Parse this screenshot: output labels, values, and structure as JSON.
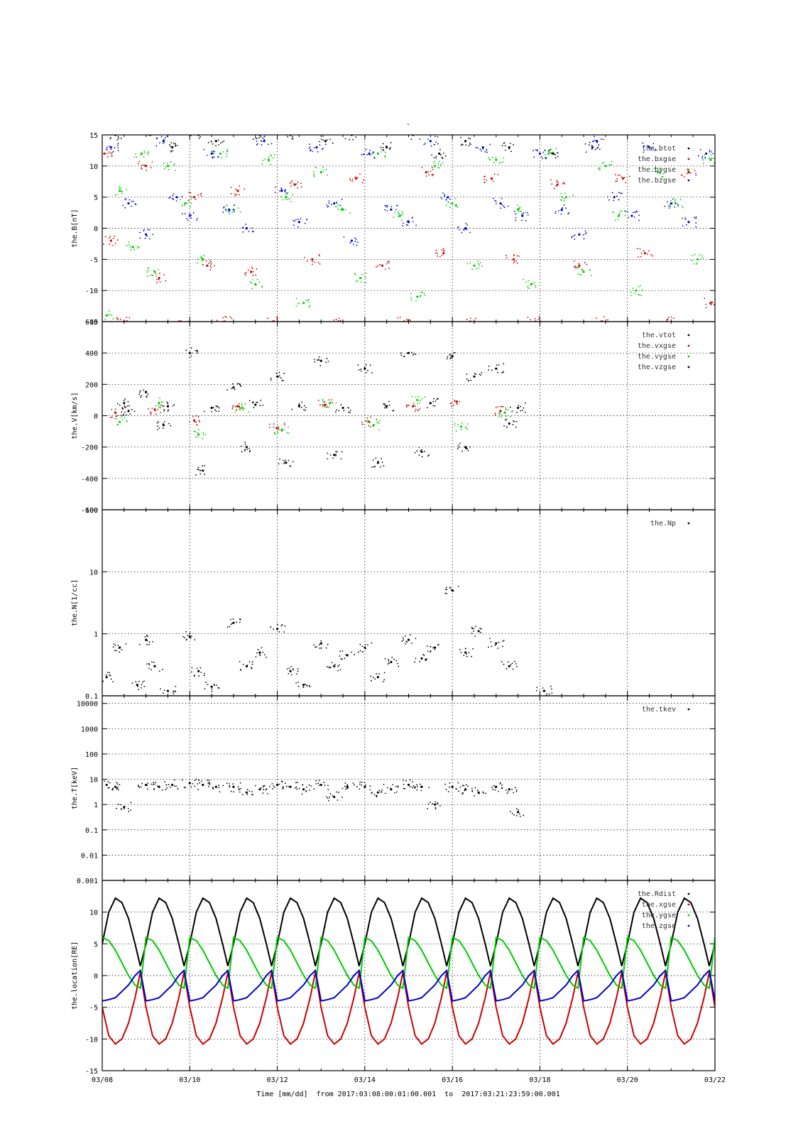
{
  "figure": {
    "top_mark": "-",
    "x_axis_label": "Time [mm/dd]  from 2017:03:08:00:01:00.001  to  2017:03:21:23:59:00.001",
    "x_ticks": [
      "03/08",
      "03/10",
      "03/12",
      "03/14",
      "03/16",
      "03/18",
      "03/20",
      "03/22"
    ]
  },
  "chart_data": [
    {
      "type": "scatter",
      "id": "B",
      "ylabel": "the.B[nT]",
      "ylim": [
        -15,
        15
      ],
      "yticks": [
        "15",
        "10",
        "5",
        "0",
        "-5",
        "-10",
        "-15"
      ],
      "ytick_values": [
        15,
        10,
        5,
        0,
        -5,
        -10,
        -15
      ],
      "grid": true,
      "legend_position": "top-right",
      "series": [
        {
          "name": "the.btot",
          "color": "#000000",
          "x_days": [
            0.3,
            1.1,
            1.6,
            2.2,
            2.6,
            3.6,
            4.3,
            5.1,
            5.7,
            6.5,
            7.1,
            7.7,
            8.3,
            9.3,
            10.3,
            11.2
          ],
          "y": [
            15,
            15,
            13,
            15,
            14,
            15,
            15,
            14,
            15,
            13,
            15,
            12,
            14,
            13,
            12,
            13
          ]
        },
        {
          "name": "the.bxgse",
          "color": "#cc0000",
          "x_days": [
            0.05,
            0.2,
            0.5,
            1.0,
            1.3,
            1.8,
            2.1,
            2.4,
            2.8,
            3.1,
            3.4,
            3.9,
            4.4,
            4.8,
            5.4,
            5.8,
            6.4,
            6.9,
            7.4,
            7.8,
            8.4,
            8.9,
            9.4,
            9.9,
            10.4,
            10.9,
            11.4,
            11.9,
            12.4,
            12.9,
            13.4,
            13.9
          ],
          "y": [
            12,
            -2,
            -15,
            10,
            -8,
            -15,
            5,
            -6,
            -15,
            6,
            -7,
            -15,
            7,
            -5,
            -15,
            8,
            -6,
            -15,
            9,
            -4,
            -15,
            8,
            -5,
            -15,
            7,
            -6,
            -15,
            8,
            -4,
            -15,
            9,
            -12
          ]
        },
        {
          "name": "the.bygse",
          "color": "#00cc00",
          "x_days": [
            0.1,
            0.4,
            0.7,
            0.9,
            1.2,
            1.5,
            1.9,
            2.3,
            2.7,
            3.0,
            3.5,
            3.8,
            4.2,
            4.6,
            5.0,
            5.5,
            5.9,
            6.3,
            6.8,
            7.2,
            7.6,
            8.0,
            8.5,
            9.0,
            9.5,
            9.8,
            10.2,
            10.6,
            11.0,
            11.5,
            11.8,
            12.2,
            12.7,
            13.1,
            13.6,
            13.9
          ],
          "y": [
            -14,
            6,
            -3,
            12,
            -7,
            10,
            4,
            -5,
            12,
            3,
            -9,
            11,
            5,
            -12,
            9,
            3,
            -8,
            12,
            2,
            -11,
            10,
            4,
            -6,
            11,
            3,
            -9,
            12,
            5,
            -7,
            10,
            2,
            -10,
            9,
            4,
            -5,
            11
          ]
        },
        {
          "name": "the.bzgse",
          "color": "#0000cc",
          "x_days": [
            0.2,
            0.6,
            1.0,
            1.4,
            1.7,
            2.0,
            2.5,
            2.9,
            3.3,
            3.7,
            4.1,
            4.5,
            4.9,
            5.3,
            5.7,
            6.1,
            6.6,
            7.0,
            7.5,
            7.9,
            8.3,
            8.7,
            9.1,
            9.6,
            10.0,
            10.5,
            10.9,
            11.3,
            11.7,
            12.1,
            12.5,
            13.0,
            13.4,
            13.8
          ],
          "y": [
            13,
            4,
            -1,
            14,
            5,
            2,
            12,
            3,
            0,
            14,
            6,
            1,
            13,
            4,
            -2,
            12,
            3,
            1,
            14,
            5,
            0,
            13,
            4,
            2,
            12,
            3,
            -1,
            14,
            5,
            2,
            13,
            4,
            1,
            12
          ]
        }
      ]
    },
    {
      "type": "scatter",
      "id": "V",
      "ylabel": "the.V[km/s]",
      "ylim": [
        -600,
        600
      ],
      "yticks": [
        "600",
        "400",
        "200",
        "0",
        "-200",
        "-400",
        "-600"
      ],
      "ytick_values": [
        600,
        400,
        200,
        0,
        -200,
        -400,
        -600
      ],
      "grid": true,
      "legend_position": "top-right",
      "series": [
        {
          "name": "the.vtot",
          "color": "#000000",
          "x_days": [
            0.5,
            1.0,
            1.5,
            2.0,
            2.5,
            3.0,
            3.5,
            4.0,
            4.5,
            5.0,
            5.5,
            6.0,
            6.5,
            7.0,
            7.5,
            8.0,
            8.5,
            9.0,
            9.5
          ],
          "y": [
            80,
            150,
            60,
            400,
            50,
            180,
            70,
            250,
            60,
            350,
            50,
            300,
            60,
            400,
            80,
            380,
            250,
            300,
            50
          ]
        },
        {
          "name": "the.vxgse",
          "color": "#cc0000",
          "x_days": [
            0.3,
            1.2,
            2.1,
            3.1,
            4.0,
            5.1,
            6.1,
            7.1,
            8.1,
            9.1
          ],
          "y": [
            20,
            40,
            -30,
            60,
            -80,
            70,
            -40,
            60,
            90,
            30
          ]
        },
        {
          "name": "the.vygse",
          "color": "#00cc00",
          "x_days": [
            0.4,
            1.3,
            2.2,
            3.2,
            4.1,
            5.2,
            6.2,
            7.2,
            8.2,
            9.2
          ],
          "y": [
            -40,
            80,
            -120,
            50,
            -90,
            80,
            -60,
            100,
            -70,
            20
          ]
        },
        {
          "name": "the.vzgse",
          "color": "#000000",
          "x_days": [
            0.6,
            1.4,
            2.3,
            3.3,
            4.2,
            5.3,
            6.3,
            7.3,
            8.3,
            9.3
          ],
          "y": [
            30,
            -60,
            -350,
            -200,
            -300,
            -250,
            -300,
            -230,
            -200,
            -50
          ]
        }
      ]
    },
    {
      "type": "scatter",
      "id": "N",
      "ylabel": "the.N[1/cc]",
      "log": true,
      "ylim": [
        0.1,
        100
      ],
      "yticks": [
        "100",
        "10",
        "1",
        "0.1"
      ],
      "ytick_values": [
        100,
        10,
        1,
        0.1
      ],
      "grid": true,
      "legend_position": "top-right",
      "series": [
        {
          "name": "the.Np",
          "color": "#000000",
          "x_days": [
            0.1,
            0.4,
            0.8,
            1.0,
            1.2,
            1.5,
            2.0,
            2.2,
            2.5,
            3.0,
            3.3,
            3.6,
            4.0,
            4.3,
            4.6,
            5.0,
            5.3,
            5.6,
            6.0,
            6.3,
            6.6,
            7.0,
            7.3,
            7.6,
            8.0,
            8.3,
            8.6,
            9.0,
            9.3,
            10.1
          ],
          "y": [
            0.2,
            0.6,
            0.15,
            0.8,
            0.3,
            0.12,
            0.9,
            0.25,
            0.14,
            1.5,
            0.3,
            0.5,
            1.2,
            0.25,
            0.15,
            0.7,
            0.3,
            0.45,
            0.6,
            0.2,
            0.35,
            0.8,
            0.4,
            0.6,
            5,
            0.5,
            1.1,
            0.7,
            0.3,
            0.12
          ]
        }
      ]
    },
    {
      "type": "scatter",
      "id": "T",
      "ylabel": "the.T[keV]",
      "log": true,
      "ylim": [
        0.001,
        20000
      ],
      "yticks": [
        "10000",
        "1000",
        "100",
        "10",
        "1",
        "0.1",
        "0.01",
        "0.001"
      ],
      "ytick_values": [
        10000,
        1000,
        100,
        10,
        1,
        0.1,
        0.01,
        0.001
      ],
      "grid": true,
      "legend_position": "top-right",
      "series": [
        {
          "name": "the.tkev",
          "color": "#000000",
          "x_days": [
            0.1,
            0.3,
            0.5,
            1.0,
            1.3,
            1.6,
            2.0,
            2.3,
            2.6,
            3.0,
            3.3,
            3.6,
            4.0,
            4.3,
            4.6,
            5.0,
            5.3,
            5.6,
            6.0,
            6.3,
            6.6,
            7.0,
            7.3,
            7.6,
            8.0,
            8.3,
            8.6,
            9.0,
            9.3,
            9.5
          ],
          "y": [
            6,
            5,
            0.8,
            6,
            5,
            6,
            7,
            6,
            5,
            5,
            3,
            4,
            6,
            5,
            4,
            6,
            2,
            5,
            5,
            3,
            4,
            6,
            5,
            1,
            5,
            4,
            3,
            5,
            4,
            0.5
          ]
        }
      ]
    },
    {
      "type": "line",
      "id": "location",
      "ylabel": "the.location[RE]",
      "ylim": [
        -15,
        15
      ],
      "yticks": [
        "10",
        "5",
        "0",
        "-5",
        "-10",
        "-15"
      ],
      "ytick_values": [
        10,
        5,
        0,
        -5,
        -10,
        -15
      ],
      "grid": true,
      "legend_position": "top-right",
      "orbit_period_days": 1.0,
      "series": [
        {
          "name": "the.Rdist",
          "color": "#000000",
          "x_days": [
            0.0,
            0.15,
            0.3,
            0.45,
            0.6,
            0.75,
            0.87,
            1.0
          ],
          "y": [
            5,
            10,
            12.2,
            11.5,
            9,
            5,
            1.5,
            5
          ]
        },
        {
          "name": "the.xgse",
          "color": "#cc0000",
          "x_days": [
            0.0,
            0.15,
            0.3,
            0.45,
            0.6,
            0.75,
            0.87,
            1.0
          ],
          "y": [
            -5,
            -9.5,
            -10.8,
            -10,
            -7.5,
            -3.5,
            0.5,
            -5
          ]
        },
        {
          "name": "the.ygse",
          "color": "#00cc00",
          "x_days": [
            0.0,
            0.15,
            0.3,
            0.45,
            0.6,
            0.75,
            0.87,
            1.0
          ],
          "y": [
            6,
            5.5,
            4,
            2,
            0,
            -1.5,
            -2,
            6
          ]
        },
        {
          "name": "the.zgse",
          "color": "#0000cc",
          "x_days": [
            0.0,
            0.15,
            0.3,
            0.45,
            0.6,
            0.75,
            0.87,
            1.0
          ],
          "y": [
            -4,
            -3.8,
            -3.5,
            -2.5,
            -1.5,
            0,
            0.8,
            -4
          ]
        }
      ]
    }
  ]
}
